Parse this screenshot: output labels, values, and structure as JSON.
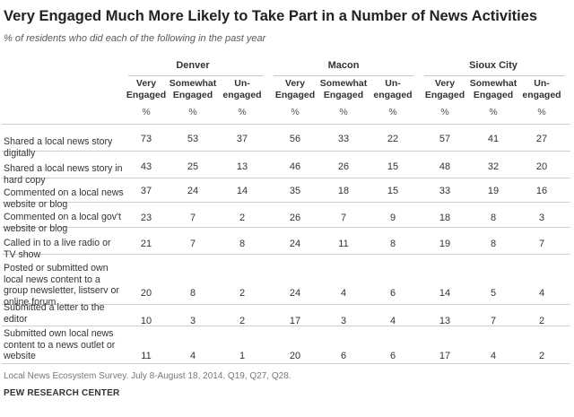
{
  "chart_data": {
    "type": "table",
    "title": "Very Engaged Much More Likely to Take Part in a Number of News Activities",
    "subtitle": "% of residents who did each of the following in the past year",
    "cities": [
      "Denver",
      "Macon",
      "Sioux City"
    ],
    "columns": [
      {
        "line1": "Very",
        "line2": "Engaged"
      },
      {
        "line1": "Somewhat",
        "line2": "Engaged"
      },
      {
        "line1": "Un-",
        "line2": "engaged"
      }
    ],
    "unit": "%",
    "rows": [
      {
        "label": "Shared a local news story digitally",
        "values": [
          73,
          53,
          37,
          56,
          33,
          22,
          57,
          41,
          27
        ]
      },
      {
        "label": "Shared a local news story in hard copy",
        "values": [
          43,
          25,
          13,
          46,
          26,
          15,
          48,
          32,
          20
        ]
      },
      {
        "label": "Commented on a local news website or blog",
        "values": [
          37,
          24,
          14,
          35,
          18,
          15,
          33,
          19,
          16
        ]
      },
      {
        "label": "Commented on a local gov't website or blog",
        "values": [
          23,
          7,
          2,
          26,
          7,
          9,
          18,
          8,
          3
        ]
      },
      {
        "label": "Called in to a live radio or TV show",
        "values": [
          21,
          7,
          8,
          24,
          11,
          8,
          19,
          8,
          7
        ]
      },
      {
        "label": "Posted or submitted own local news content to a group newsletter, listserv or online forum",
        "values": [
          20,
          8,
          2,
          24,
          4,
          6,
          14,
          5,
          4
        ]
      },
      {
        "label": "Submitted a letter to the editor",
        "values": [
          10,
          3,
          2,
          17,
          3,
          4,
          13,
          7,
          2
        ]
      },
      {
        "label": "Submitted own local news content to a news outlet or website",
        "values": [
          11,
          4,
          1,
          20,
          6,
          6,
          17,
          4,
          2
        ]
      }
    ],
    "source": "Local News Ecosystem Survey. July 8-August 18, 2014. Q19, Q27, Q28.",
    "organization": "PEW RESEARCH CENTER"
  }
}
